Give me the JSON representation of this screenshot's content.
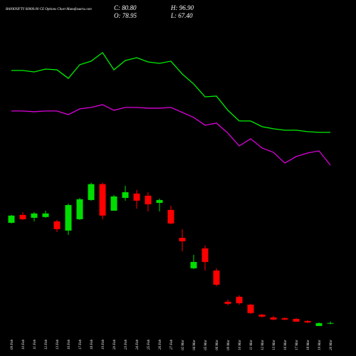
{
  "chart_data": {
    "type": "candlestick",
    "title": "BANKNIFTY 60000.00 CE Options Chart Munafasutra.com",
    "header_texts": [
      "C: 80.80",
      "O: 78.95",
      "H: 96.90",
      "L: 67.40"
    ],
    "categories": [
      "09 Feb",
      "10 Feb",
      "11 Feb",
      "12 Feb",
      "13 Feb",
      "16 Feb",
      "17 Feb",
      "18 Feb",
      "19 Feb",
      "20 Feb",
      "23 Feb",
      "24 Feb",
      "25 Feb",
      "26 Feb",
      "27 Feb",
      "02 Mar",
      "04 Mar",
      "05 Mar",
      "06 Mar",
      "09 Mar",
      "10 Mar",
      "11 Mar",
      "12 Mar",
      "13 Mar",
      "16 Mar",
      "17 Mar",
      "18 Mar",
      "19 Mar",
      "20 Mar"
    ],
    "open": [
      1123,
      1205,
      1175,
      1183,
      1138,
      1042,
      1160,
      1360,
      1525,
      1249,
      1382,
      1427,
      1405,
      1330,
      1257,
      967,
      650,
      857,
      627,
      302,
      354,
      272,
      168,
      139,
      132,
      124,
      102,
      50,
      78.95
    ],
    "high": [
      1205,
      1234,
      1234,
      1249,
      1153,
      1323,
      1382,
      1540,
      1540,
      1412,
      1508,
      1464,
      1441,
      1375,
      1301,
      1057,
      790,
      887,
      650,
      324,
      369,
      280,
      176,
      154,
      139,
      132,
      110,
      87,
      96.9
    ],
    "low": [
      1116,
      1153,
      1138,
      1175,
      1027,
      997,
      1153,
      1353,
      1160,
      1249,
      1353,
      1271,
      1242,
      1242,
      1108,
      827,
      642,
      627,
      464,
      265,
      272,
      176,
      139,
      110,
      110,
      95,
      80,
      50,
      67.4
    ],
    "close": [
      1198,
      1160,
      1220,
      1220,
      1057,
      1308,
      1368,
      1525,
      1198,
      1397,
      1441,
      1353,
      1316,
      1360,
      1116,
      931,
      716,
      716,
      479,
      280,
      287,
      184,
      147,
      117,
      117,
      95,
      87,
      80,
      80.8
    ],
    "up_color": "#00dd00",
    "down_color": "#ff0000",
    "lines": [
      {
        "color": "#00ee00",
        "values": [
          2707,
          2707,
          2692,
          2722,
          2714,
          2625,
          2767,
          2804,
          2893,
          2714,
          2811,
          2840,
          2796,
          2781,
          2804,
          2670,
          2567,
          2433,
          2441,
          2293,
          2182,
          2182,
          2123,
          2101,
          2086,
          2086,
          2071,
          2064,
          2064
        ]
      },
      {
        "color": "#dd00dd",
        "values": [
          2286,
          2286,
          2278,
          2286,
          2286,
          2248,
          2308,
          2323,
          2352,
          2293,
          2323,
          2323,
          2315,
          2315,
          2323,
          2271,
          2219,
          2138,
          2160,
          2056,
          1923,
          1997,
          1901,
          1856,
          1745,
          1812,
          1849,
          1871,
          1723
        ]
      }
    ],
    "ylim": [
      -40,
      3440
    ]
  }
}
